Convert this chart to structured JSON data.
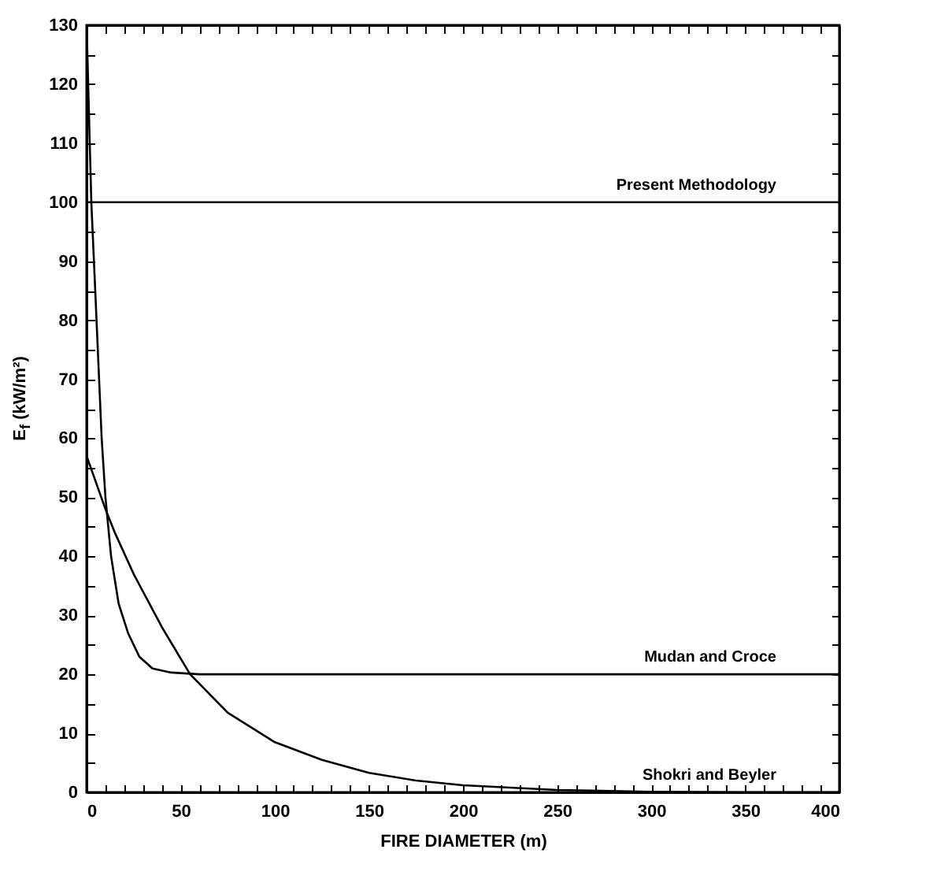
{
  "chart_data": {
    "type": "line",
    "xlabel": "FIRE DIAMETER (m)",
    "ylabel": "E$_{f}$ (kW/m²)",
    "xlim": [
      0,
      400
    ],
    "ylim": [
      0,
      130
    ],
    "xticks": [
      0,
      {
        "value": 10,
        "label": null
      },
      {
        "value": 20,
        "label": null
      },
      {
        "value": 30,
        "label": null
      },
      {
        "value": 40,
        "label": null
      },
      50,
      {
        "value": 60,
        "label": null
      },
      {
        "value": 70,
        "label": null
      },
      {
        "value": 80,
        "label": null
      },
      {
        "value": 90,
        "label": null
      },
      100,
      {
        "value": 110,
        "label": null
      },
      {
        "value": 120,
        "label": null
      },
      {
        "value": 130,
        "label": null
      },
      {
        "value": 140,
        "label": null
      },
      150,
      {
        "value": 160,
        "label": null
      },
      {
        "value": 170,
        "label": null
      },
      {
        "value": 180,
        "label": null
      },
      {
        "value": 190,
        "label": null
      },
      200,
      {
        "value": 210,
        "label": null
      },
      {
        "value": 220,
        "label": null
      },
      {
        "value": 230,
        "label": null
      },
      {
        "value": 240,
        "label": null
      },
      250,
      {
        "value": 260,
        "label": null
      },
      {
        "value": 270,
        "label": null
      },
      {
        "value": 280,
        "label": null
      },
      {
        "value": 290,
        "label": null
      },
      300,
      {
        "value": 310,
        "label": null
      },
      {
        "value": 320,
        "label": null
      },
      {
        "value": 330,
        "label": null
      },
      {
        "value": 340,
        "label": null
      },
      350,
      {
        "value": 360,
        "label": null
      },
      {
        "value": 370,
        "label": null
      },
      {
        "value": 380,
        "label": null
      },
      {
        "value": 390,
        "label": null
      },
      400
    ],
    "yticks": [
      0,
      {
        "value": 5,
        "label": null
      },
      10,
      {
        "value": 15,
        "label": null
      },
      20,
      {
        "value": 25,
        "label": null
      },
      30,
      {
        "value": 35,
        "label": null
      },
      40,
      {
        "value": 45,
        "label": null
      },
      50,
      {
        "value": 55,
        "label": null
      },
      60,
      {
        "value": 65,
        "label": null
      },
      70,
      {
        "value": 75,
        "label": null
      },
      80,
      {
        "value": 85,
        "label": null
      },
      90,
      {
        "value": 95,
        "label": null
      },
      100,
      {
        "value": 105,
        "label": null
      },
      110,
      {
        "value": 115,
        "label": null
      },
      120,
      {
        "value": 125,
        "label": null
      },
      130
    ],
    "grid": false,
    "legend": false,
    "marker": "none",
    "line_style": "solid",
    "series": [
      {
        "name": "Present Methodology",
        "color": "#000000",
        "x": [
          0,
          400
        ],
        "values": [
          100,
          100
        ]
      },
      {
        "name": "Mudan and Croce",
        "color": "#000000",
        "x": [
          0,
          2.5,
          5,
          8,
          10,
          13,
          17,
          22,
          28,
          35,
          45,
          60,
          400
        ],
        "values": [
          130,
          100,
          82,
          60,
          50,
          40,
          32,
          27,
          23,
          21,
          20.3,
          20,
          20
        ]
      },
      {
        "name": "Shokri and Beyler",
        "color": "#000000",
        "x": [
          0,
          10,
          15,
          25,
          40,
          55,
          75,
          100,
          125,
          150,
          175,
          200,
          250,
          300,
          350,
          400
        ],
        "values": [
          57,
          48,
          44,
          37,
          28,
          20,
          13.5,
          8.5,
          5.5,
          3.3,
          2,
          1.2,
          0.4,
          0.1,
          0,
          0
        ]
      }
    ]
  }
}
